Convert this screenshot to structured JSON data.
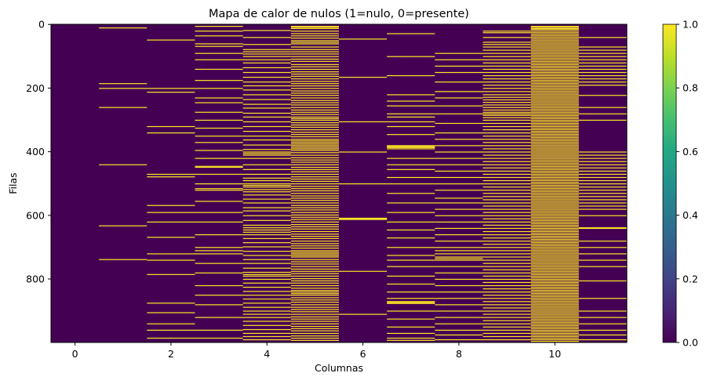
{
  "chart_data": {
    "type": "heatmap",
    "title": "Mapa de calor de nulos (1=nulo, 0=presente)",
    "xlabel": "Columnas",
    "ylabel": "Filas",
    "n_rows": 1000,
    "n_cols": 12,
    "xlim": [
      -0.5,
      11.5
    ],
    "ylim": [
      999.5,
      -0.5
    ],
    "x_ticks": [
      0,
      2,
      4,
      6,
      8,
      10
    ],
    "y_ticks": [
      0,
      200,
      400,
      600,
      800
    ],
    "colorbar": {
      "ticks": [
        "0.0",
        "0.2",
        "0.4",
        "0.6",
        "0.8",
        "1.0"
      ],
      "range": [
        0,
        1
      ],
      "colormap": "viridis",
      "low_color": "#440154",
      "high_color": "#fde725"
    },
    "null_rows_per_column": [
      [],
      [
        10,
        185,
        200,
        260,
        440,
        632,
        738
      ],
      [
        48,
        200,
        212,
        320,
        340,
        470,
        478,
        568,
        590,
        620,
        668,
        720,
        740,
        785,
        875,
        905,
        940,
        960,
        985
      ],
      [
        5,
        20,
        35,
        60,
        68,
        90,
        110,
        140,
        175,
        200,
        230,
        245,
        275,
        300,
        325,
        350,
        370,
        395,
        420,
        445,
        448,
        470,
        500,
        515,
        520,
        555,
        590,
        620,
        660,
        700,
        710,
        720,
        750,
        780,
        820,
        850,
        880,
        920,
        960,
        985
      ],
      [
        18,
        40,
        62,
        78,
        85,
        92,
        100,
        110,
        120,
        135,
        150,
        165,
        180,
        192,
        205,
        220,
        235,
        250,
        262,
        278,
        290,
        305,
        320,
        335,
        350,
        362,
        378,
        392,
        400,
        405,
        410,
        420,
        440,
        455,
        470,
        482,
        490,
        500,
        505,
        510,
        518,
        525,
        535,
        548,
        560,
        575,
        585,
        600,
        615,
        630,
        638,
        645,
        652,
        660,
        672,
        685,
        698,
        712,
        725,
        738,
        750,
        765,
        778,
        785,
        790,
        800,
        812,
        825,
        838,
        850,
        862,
        875,
        888,
        900,
        910,
        920,
        932,
        945,
        958,
        970,
        980,
        990
      ],
      [
        5,
        8,
        12,
        20,
        28,
        35,
        42,
        50,
        55,
        60,
        70,
        78,
        85,
        92,
        100,
        108,
        115,
        125,
        132,
        140,
        148,
        155,
        162,
        170,
        178,
        185,
        192,
        200,
        208,
        215,
        222,
        230,
        238,
        245,
        252,
        260,
        268,
        275,
        282,
        290,
        295,
        300,
        308,
        315,
        322,
        330,
        338,
        345,
        352,
        360,
        365,
        370,
        375,
        380,
        385,
        390,
        395,
        402,
        410,
        418,
        425,
        432,
        440,
        448,
        455,
        462,
        470,
        478,
        485,
        492,
        500,
        508,
        515,
        522,
        530,
        538,
        545,
        552,
        560,
        568,
        575,
        582,
        590,
        598,
        605,
        612,
        620,
        628,
        635,
        642,
        650,
        658,
        665,
        672,
        680,
        688,
        695,
        702,
        710,
        715,
        720,
        725,
        730,
        738,
        745,
        752,
        760,
        768,
        775,
        782,
        790,
        798,
        805,
        812,
        820,
        828,
        835,
        840,
        845,
        850,
        858,
        865,
        872,
        880,
        888,
        895,
        902,
        910,
        918,
        925,
        932,
        940,
        948,
        955,
        962,
        970,
        978,
        985,
        992
      ],
      [
        45,
        165,
        305,
        400,
        500,
        608,
        610,
        612,
        775,
        910
      ],
      [
        28,
        100,
        160,
        220,
        240,
        255,
        280,
        290,
        305,
        320,
        345,
        380,
        383,
        386,
        390,
        420,
        440,
        455,
        480,
        500,
        530,
        560,
        590,
        620,
        645,
        670,
        700,
        725,
        740,
        760,
        790,
        815,
        840,
        860,
        870,
        873,
        876,
        900,
        925,
        950,
        970,
        985,
        992
      ],
      [
        90,
        110,
        130,
        150,
        180,
        210,
        230,
        255,
        280,
        310,
        340,
        360,
        380,
        400,
        420,
        440,
        460,
        480,
        500,
        520,
        545,
        560,
        580,
        600,
        620,
        640,
        660,
        680,
        700,
        710,
        720,
        730,
        735,
        740,
        760,
        780,
        800,
        820,
        840,
        860,
        880,
        900,
        920,
        940,
        960,
        975,
        990
      ],
      [
        20,
        25,
        40,
        55,
        62,
        70,
        80,
        90,
        100,
        110,
        120,
        130,
        140,
        150,
        160,
        170,
        180,
        190,
        200,
        210,
        220,
        228,
        236,
        244,
        252,
        260,
        268,
        275,
        280,
        285,
        292,
        300,
        310,
        320,
        330,
        340,
        350,
        360,
        370,
        380,
        390,
        400,
        410,
        420,
        430,
        440,
        450,
        460,
        470,
        480,
        490,
        500,
        510,
        520,
        530,
        540,
        550,
        560,
        570,
        580,
        590,
        600,
        610,
        620,
        630,
        640,
        650,
        660,
        670,
        680,
        690,
        700,
        710,
        720,
        730,
        740,
        750,
        760,
        770,
        780,
        790,
        800,
        810,
        820,
        830,
        840,
        850,
        860,
        870,
        880,
        890,
        900,
        910,
        920,
        930,
        940,
        950,
        960,
        970,
        980,
        990
      ],
      [
        5,
        8,
        12,
        15,
        20,
        25,
        30,
        35,
        40,
        45,
        50,
        55,
        60,
        65,
        70,
        75,
        80,
        85,
        90,
        95,
        100,
        105,
        110,
        115,
        120,
        125,
        130,
        135,
        140,
        145,
        150,
        155,
        160,
        165,
        170,
        175,
        180,
        185,
        190,
        195,
        200,
        205,
        210,
        215,
        220,
        225,
        230,
        235,
        240,
        245,
        250,
        255,
        260,
        265,
        270,
        275,
        280,
        285,
        290,
        295,
        300,
        305,
        310,
        315,
        320,
        325,
        330,
        335,
        340,
        345,
        350,
        355,
        360,
        365,
        370,
        375,
        380,
        385,
        390,
        395,
        400,
        405,
        410,
        415,
        420,
        425,
        430,
        435,
        440,
        445,
        450,
        455,
        460,
        465,
        470,
        475,
        480,
        485,
        490,
        495,
        500,
        505,
        510,
        515,
        520,
        525,
        530,
        535,
        540,
        545,
        550,
        555,
        560,
        565,
        570,
        575,
        580,
        585,
        590,
        595,
        600,
        605,
        610,
        615,
        620,
        625,
        630,
        635,
        640,
        645,
        650,
        655,
        660,
        665,
        670,
        675,
        680,
        685,
        690,
        695,
        700,
        705,
        710,
        715,
        720,
        725,
        730,
        735,
        740,
        745,
        750,
        755,
        760,
        765,
        770,
        775,
        780,
        785,
        790,
        795,
        800,
        805,
        810,
        815,
        820,
        825,
        830,
        835,
        840,
        845,
        850,
        855,
        860,
        865,
        870,
        875,
        880,
        885,
        890,
        895,
        900,
        905,
        910,
        915,
        920,
        925,
        930,
        935,
        940,
        945,
        950,
        955,
        960,
        965,
        970,
        975,
        980,
        985,
        990,
        995
      ],
      [
        40,
        70,
        80,
        90,
        100,
        110,
        120,
        130,
        140,
        150,
        160,
        170,
        180,
        190,
        222,
        260,
        280,
        300,
        400,
        410,
        420,
        430,
        440,
        450,
        460,
        470,
        480,
        490,
        500,
        510,
        520,
        530,
        540,
        550,
        560,
        570,
        580,
        600,
        638,
        640,
        680,
        700,
        720,
        740,
        760,
        805,
        860,
        900,
        920,
        940,
        960,
        975,
        990
      ]
    ]
  }
}
